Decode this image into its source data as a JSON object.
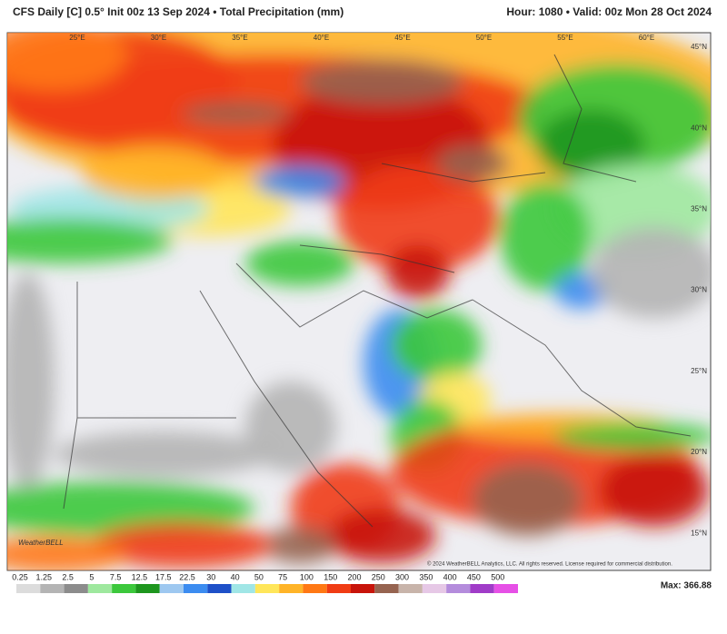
{
  "header": {
    "title": "CFS Daily [C] 0.5° Init 00z 13 Sep 2024 • Total Precipitation (mm)",
    "valid": "Hour: 1080 • Valid: 00z Mon 28 Oct 2024"
  },
  "map": {
    "lon_labels": [
      "25°E",
      "30°E",
      "35°E",
      "40°E",
      "45°E",
      "50°E",
      "55°E",
      "60°E"
    ],
    "lat_labels": [
      "45°N",
      "40°N",
      "35°N",
      "30°N",
      "25°N",
      "20°N",
      "15°N"
    ],
    "logo": "WeatherBELL",
    "credit": "© 2024 WeatherBELL Analytics, LLC. All rights reserved. License required for commercial distribution."
  },
  "legend": {
    "labels": [
      0.25,
      1.25,
      2.5,
      5,
      7.5,
      12.5,
      17.5,
      22.5,
      30,
      40,
      50,
      75,
      100,
      150,
      200,
      250,
      300,
      350,
      400,
      450,
      500
    ],
    "colors": [
      "#dcdcdc",
      "#b4b4b4",
      "#8c8c8c",
      "#9ee89e",
      "#3cc83c",
      "#1e961e",
      "#9ec8f0",
      "#3c8cf0",
      "#1e50c8",
      "#a0e6e6",
      "#ffe65a",
      "#ffb428",
      "#ff7814",
      "#f03c14",
      "#c8140a",
      "#966450",
      "#c8b4aa",
      "#e6c8e6",
      "#b48cdc",
      "#a03cc8",
      "#e650e6"
    ],
    "max": "Max: 366.88"
  }
}
